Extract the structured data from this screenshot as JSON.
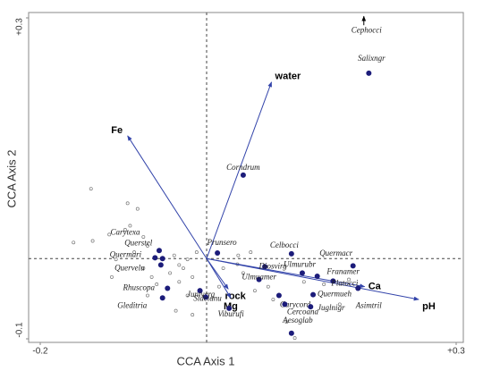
{
  "chart_data": {
    "type": "scatter",
    "xlabel": "CCA Axis 1",
    "ylabel": "CCA Axis 2",
    "xlim": [
      -0.2,
      0.3
    ],
    "ylim": [
      -0.1,
      0.3
    ],
    "xticks": [
      {
        "value": -0.2,
        "label": "-0.2"
      },
      {
        "value": 0.3,
        "label": "+0.3"
      }
    ],
    "yticks": [
      {
        "value": -0.1,
        "label": "-0.1"
      },
      {
        "value": 0.3,
        "label": "+0.3"
      }
    ],
    "species": {
      "color": "#1c1c7a",
      "labels": [
        "Cephocci",
        "Salixngr",
        "Corndrum",
        "Carytexa",
        "Querstel",
        "Quermari",
        "Quervelu",
        "Rhuscopa",
        "Gleditria",
        "Juniverg",
        "Sideianu",
        "Viburufi",
        "Prunsero",
        "Celbocci",
        "Quermacr",
        "Ulmurubr",
        "Diosvirg",
        "Franamer",
        "Platocci",
        "Ulmuamer",
        "Quermueh",
        "Carycord",
        "Cercoana",
        "Juglnigr",
        "Aesoglab",
        "Asimtril"
      ],
      "x": [
        0.189,
        0.195,
        0.044,
        -0.057,
        -0.053,
        -0.062,
        -0.055,
        -0.047,
        -0.053,
        -0.008,
        -0.001,
        0.027,
        0.013,
        0.102,
        0.133,
        0.115,
        0.07,
        0.176,
        0.152,
        0.063,
        0.128,
        0.087,
        0.094,
        0.125,
        0.102,
        0.182
      ],
      "y": [
        0.302,
        0.231,
        0.104,
        0.01,
        0.0,
        0.001,
        -0.008,
        -0.037,
        -0.049,
        -0.04,
        -0.048,
        -0.062,
        0.007,
        0.006,
        -0.022,
        -0.018,
        -0.01,
        -0.009,
        -0.028,
        -0.026,
        -0.045,
        -0.046,
        -0.057,
        -0.06,
        -0.093,
        -0.037
      ]
    },
    "sites": {
      "x": [
        -0.139,
        -0.095,
        -0.083,
        -0.16,
        -0.137,
        -0.117,
        -0.098,
        -0.076,
        -0.071,
        -0.087,
        -0.109,
        -0.076,
        -0.066,
        -0.044,
        -0.033,
        -0.023,
        -0.028,
        -0.017,
        -0.033,
        -0.06,
        -0.071,
        -0.023,
        -0.017,
        -0.037,
        -0.114,
        0.015,
        0.02,
        0.037,
        0.044,
        0.058,
        0.074,
        0.08,
        0.096,
        0.106,
        0.117,
        0.141,
        0.16,
        0.171,
        -0.092,
        0.038,
        0.053,
        -0.039,
        -0.012
      ],
      "y": [
        0.087,
        0.069,
        0.062,
        0.02,
        0.022,
        0.03,
        0.036,
        0.027,
        0.016,
        0.008,
        -0.001,
        -0.012,
        -0.023,
        -0.018,
        -0.008,
        -0.001,
        -0.012,
        -0.023,
        -0.029,
        -0.032,
        -0.046,
        -0.046,
        -0.07,
        -0.065,
        -0.023,
        -0.035,
        -0.012,
        -0.007,
        -0.018,
        -0.04,
        -0.035,
        -0.051,
        -0.079,
        -0.099,
        -0.029,
        -0.032,
        -0.057,
        -0.026,
        0.041,
        0.004,
        0.008,
        0.004,
        0.008
      ]
    },
    "vectors": {
      "color": "#3344aa",
      "labels": [
        "Fe",
        "water",
        "rock",
        "Mg",
        "Ca",
        "pH"
      ],
      "x": [
        -0.095,
        0.078,
        0.026,
        0.029,
        0.19,
        0.255
      ],
      "y": [
        0.153,
        0.22,
        -0.038,
        -0.049,
        -0.035,
        -0.051
      ]
    }
  }
}
